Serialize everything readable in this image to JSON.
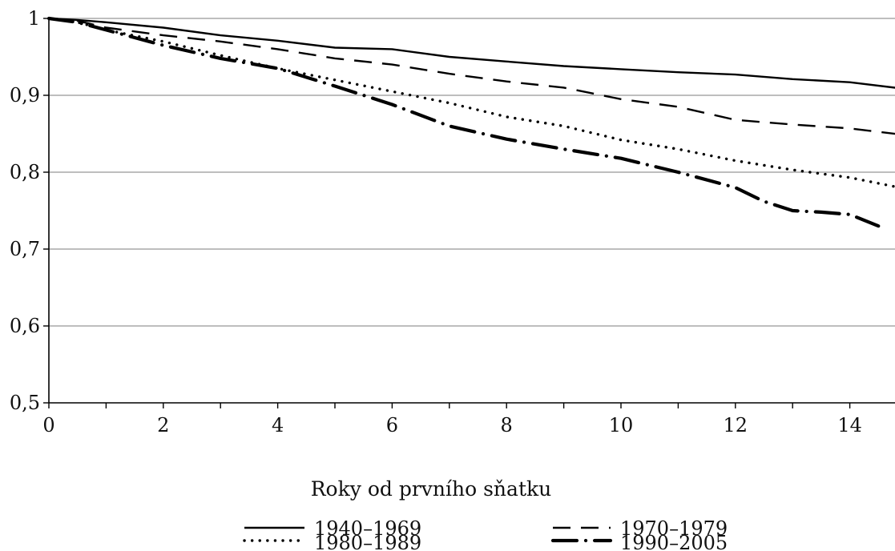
{
  "chart_data": {
    "type": "line",
    "title": "",
    "xlabel": "Roky od prvního sňatku",
    "ylabel": "",
    "xlim": [
      0,
      15
    ],
    "ylim": [
      0.5,
      1.0
    ],
    "x_ticks": [
      0,
      2,
      4,
      6,
      8,
      10,
      12,
      14
    ],
    "x_tick_labels": [
      "0",
      "2",
      "4",
      "6",
      "8",
      "10",
      "12",
      "14"
    ],
    "y_ticks": [
      0.5,
      0.6,
      0.7,
      0.8,
      0.9,
      1.0
    ],
    "y_tick_labels": [
      "0,5",
      "0,6",
      "0,7",
      "0,8",
      "0,9",
      "1"
    ],
    "grid": "horizontal",
    "legend_placement": "bottom",
    "series": [
      {
        "name": "1940–1969",
        "style": "solid",
        "color": "#000000",
        "x": [
          0,
          0.5,
          1,
          2,
          3,
          4,
          5,
          6,
          7,
          8,
          9,
          10,
          11,
          12,
          13,
          14,
          15
        ],
        "y": [
          1.0,
          0.998,
          0.995,
          0.988,
          0.978,
          0.971,
          0.962,
          0.96,
          0.95,
          0.944,
          0.938,
          0.934,
          0.93,
          0.927,
          0.921,
          0.917,
          0.908
        ]
      },
      {
        "name": "1970–1979",
        "style": "dashed",
        "color": "#000000",
        "x": [
          0,
          0.5,
          1,
          2,
          3,
          4,
          5,
          6,
          7,
          8,
          9,
          10,
          11,
          12,
          13,
          14,
          15
        ],
        "y": [
          1.0,
          0.997,
          0.988,
          0.978,
          0.97,
          0.96,
          0.948,
          0.94,
          0.928,
          0.918,
          0.91,
          0.895,
          0.885,
          0.868,
          0.862,
          0.857,
          0.848
        ]
      },
      {
        "name": "1980–1989",
        "style": "dotted",
        "color": "#000000",
        "x": [
          0,
          0.5,
          1,
          2,
          3,
          4,
          5,
          6,
          7,
          8,
          9,
          10,
          11,
          12,
          13,
          14,
          15
        ],
        "y": [
          1.0,
          0.995,
          0.985,
          0.97,
          0.952,
          0.935,
          0.92,
          0.905,
          0.89,
          0.872,
          0.86,
          0.842,
          0.83,
          0.815,
          0.803,
          0.793,
          0.778
        ]
      },
      {
        "name": "1990–2005",
        "style": "dash-dot",
        "color": "#000000",
        "x": [
          0,
          0.5,
          1,
          2,
          3,
          4,
          5,
          6,
          7,
          8,
          9,
          10,
          11,
          12,
          12.5,
          13,
          13.5,
          14,
          14.5
        ],
        "y": [
          1.0,
          0.995,
          0.985,
          0.965,
          0.948,
          0.935,
          0.912,
          0.888,
          0.86,
          0.843,
          0.83,
          0.818,
          0.8,
          0.78,
          0.762,
          0.75,
          0.748,
          0.745,
          0.73
        ]
      }
    ]
  }
}
